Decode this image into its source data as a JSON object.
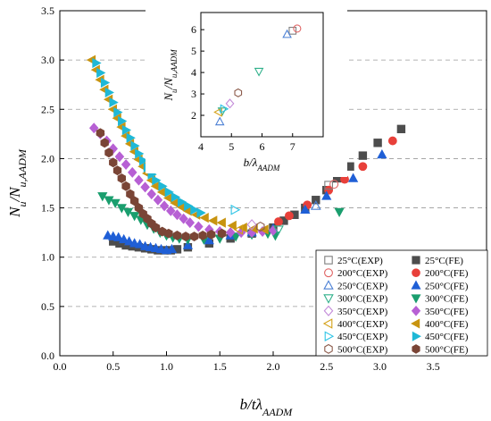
{
  "chart_data": [
    {
      "type": "scatter",
      "title": "",
      "xlabel": "b/tλ_AADM",
      "ylabel": "N_u/N_u,AADM",
      "xlim": [
        0,
        4.0
      ],
      "ylim": [
        0,
        3.5
      ],
      "xticks": [
        "0.0",
        "0.5",
        "1.0",
        "1.5",
        "2.0",
        "2.5",
        "3.0",
        "3.5"
      ],
      "yticks": [
        "0.0",
        "0.5",
        "1.0",
        "1.5",
        "2.0",
        "2.5",
        "3.0",
        "3.5"
      ],
      "grid": "horizontal dashed",
      "legend_position": "bottom-right",
      "legend_columns": 2,
      "series": [
        {
          "name": "25°C(EXP)",
          "marker": "square",
          "filled": false,
          "color": "#7f7f7f",
          "points": [
            [
              2.52,
              1.73
            ]
          ]
        },
        {
          "name": "200°C(EXP)",
          "marker": "circle",
          "filled": false,
          "color": "#e06666",
          "points": [
            [
              2.57,
              1.74
            ]
          ]
        },
        {
          "name": "250°C(EXP)",
          "marker": "triangle-up",
          "filled": false,
          "color": "#4a7fd4",
          "points": [
            [
              2.4,
              1.52
            ]
          ]
        },
        {
          "name": "300°C(EXP)",
          "marker": "triangle-down",
          "filled": false,
          "color": "#2fb08a",
          "points": [
            [
              2.05,
              1.28
            ]
          ]
        },
        {
          "name": "350°C(EXP)",
          "marker": "diamond",
          "filled": false,
          "color": "#c38bd9",
          "points": [
            [
              1.8,
              1.33
            ]
          ]
        },
        {
          "name": "400°C(EXP)",
          "marker": "triangle-left",
          "filled": false,
          "color": "#d4a017",
          "points": [
            [
              1.68,
              1.28
            ]
          ]
        },
        {
          "name": "450°C(EXP)",
          "marker": "triangle-right",
          "filled": false,
          "color": "#2ec4e6",
          "points": [
            [
              1.64,
              1.48
            ]
          ]
        },
        {
          "name": "500°C(EXP)",
          "marker": "hexagon",
          "filled": false,
          "color": "#8b5a4a",
          "points": [
            [
              1.88,
              1.31
            ]
          ]
        },
        {
          "name": "25°C(FE)",
          "marker": "square",
          "filled": true,
          "color": "#4d4d4d",
          "points": [
            [
              0.5,
              1.16
            ],
            [
              0.56,
              1.14
            ],
            [
              0.62,
              1.12
            ],
            [
              0.68,
              1.11
            ],
            [
              0.74,
              1.1
            ],
            [
              0.8,
              1.09
            ],
            [
              0.86,
              1.08
            ],
            [
              0.92,
              1.07
            ],
            [
              0.98,
              1.07
            ],
            [
              1.04,
              1.07
            ],
            [
              1.1,
              1.08
            ],
            [
              1.2,
              1.1
            ],
            [
              1.4,
              1.14
            ],
            [
              1.6,
              1.19
            ],
            [
              1.8,
              1.24
            ],
            [
              2.0,
              1.3
            ],
            [
              2.1,
              1.37
            ],
            [
              2.2,
              1.43
            ],
            [
              2.3,
              1.5
            ],
            [
              2.4,
              1.58
            ],
            [
              2.5,
              1.68
            ],
            [
              2.6,
              1.8
            ],
            [
              2.72,
              1.92
            ],
            [
              2.84,
              2.03
            ],
            [
              2.98,
              2.16
            ],
            [
              3.2,
              2.3
            ]
          ]
        },
        {
          "name": "200°C(FE)",
          "marker": "circle",
          "filled": true,
          "color": "#e8403a",
          "points": [
            [
              2.05,
              1.36
            ],
            [
              2.15,
              1.42
            ],
            [
              2.32,
              1.53
            ],
            [
              2.52,
              1.68
            ],
            [
              2.67,
              1.79
            ],
            [
              2.84,
              1.92
            ],
            [
              3.12,
              2.18
            ]
          ]
        },
        {
          "name": "250°C(FE)",
          "marker": "triangle-up",
          "filled": true,
          "color": "#1f5fd6",
          "points": [
            [
              0.45,
              1.22
            ],
            [
              0.5,
              1.21
            ],
            [
              0.55,
              1.2
            ],
            [
              0.6,
              1.18
            ],
            [
              0.65,
              1.16
            ],
            [
              0.7,
              1.14
            ],
            [
              0.75,
              1.13
            ],
            [
              0.8,
              1.11
            ],
            [
              0.85,
              1.1
            ],
            [
              0.9,
              1.09
            ],
            [
              0.95,
              1.08
            ],
            [
              1.0,
              1.07
            ],
            [
              1.05,
              1.08
            ],
            [
              1.2,
              1.12
            ],
            [
              1.4,
              1.17
            ],
            [
              1.6,
              1.22
            ],
            [
              1.8,
              1.25
            ],
            [
              2.0,
              1.29
            ],
            [
              2.3,
              1.48
            ],
            [
              2.5,
              1.62
            ],
            [
              2.75,
              1.8
            ],
            [
              3.02,
              2.04
            ]
          ]
        },
        {
          "name": "300°C(FE)",
          "marker": "triangle-down",
          "filled": true,
          "color": "#1a9e6e",
          "points": [
            [
              0.4,
              1.62
            ],
            [
              0.46,
              1.58
            ],
            [
              0.52,
              1.55
            ],
            [
              0.58,
              1.5
            ],
            [
              0.64,
              1.46
            ],
            [
              0.7,
              1.42
            ],
            [
              0.76,
              1.38
            ],
            [
              0.82,
              1.33
            ],
            [
              0.88,
              1.29
            ],
            [
              0.94,
              1.25
            ],
            [
              1.0,
              1.22
            ],
            [
              1.06,
              1.2
            ],
            [
              1.12,
              1.19
            ],
            [
              1.2,
              1.18
            ],
            [
              1.35,
              1.18
            ],
            [
              1.5,
              1.19
            ],
            [
              1.65,
              1.21
            ],
            [
              1.8,
              1.23
            ],
            [
              1.95,
              1.24
            ],
            [
              2.02,
              1.22
            ],
            [
              2.62,
              1.46
            ]
          ]
        },
        {
          "name": "350°C(FE)",
          "marker": "diamond",
          "filled": true,
          "color": "#b760d4",
          "points": [
            [
              0.32,
              2.31
            ],
            [
              0.38,
              2.25
            ],
            [
              0.44,
              2.18
            ],
            [
              0.5,
              2.1
            ],
            [
              0.56,
              2.02
            ],
            [
              0.62,
              1.94
            ],
            [
              0.68,
              1.86
            ],
            [
              0.74,
              1.78
            ],
            [
              0.8,
              1.71
            ],
            [
              0.86,
              1.64
            ],
            [
              0.92,
              1.58
            ],
            [
              0.98,
              1.52
            ],
            [
              1.04,
              1.47
            ],
            [
              1.1,
              1.43
            ],
            [
              1.16,
              1.39
            ],
            [
              1.22,
              1.35
            ],
            [
              1.3,
              1.31
            ],
            [
              1.4,
              1.28
            ],
            [
              1.5,
              1.26
            ],
            [
              1.6,
              1.25
            ],
            [
              1.7,
              1.25
            ],
            [
              1.8,
              1.25
            ],
            [
              1.9,
              1.26
            ],
            [
              2.0,
              1.27
            ]
          ]
        },
        {
          "name": "400°C(FE)",
          "marker": "triangle-left",
          "filled": true,
          "color": "#c89410",
          "points": [
            [
              0.3,
              3.0
            ],
            [
              0.34,
              2.9
            ],
            [
              0.38,
              2.8
            ],
            [
              0.42,
              2.7
            ],
            [
              0.46,
              2.6
            ],
            [
              0.5,
              2.5
            ],
            [
              0.54,
              2.41
            ],
            [
              0.58,
              2.32
            ],
            [
              0.62,
              2.23
            ],
            [
              0.66,
              2.15
            ],
            [
              0.7,
              2.07
            ],
            [
              0.74,
              1.99
            ],
            [
              0.78,
              1.92
            ],
            [
              0.82,
              1.85
            ],
            [
              0.86,
              1.78
            ],
            [
              0.9,
              1.72
            ],
            [
              0.96,
              1.66
            ],
            [
              1.02,
              1.6
            ],
            [
              1.08,
              1.55
            ],
            [
              1.14,
              1.51
            ],
            [
              1.2,
              1.47
            ],
            [
              1.28,
              1.43
            ],
            [
              1.36,
              1.4
            ],
            [
              1.44,
              1.37
            ],
            [
              1.52,
              1.35
            ],
            [
              1.62,
              1.32
            ],
            [
              1.72,
              1.3
            ],
            [
              1.82,
              1.29
            ],
            [
              1.92,
              1.28
            ]
          ]
        },
        {
          "name": "450°C(FE)",
          "marker": "triangle-right",
          "filled": true,
          "color": "#1fb8d6",
          "points": [
            [
              0.34,
              2.97
            ],
            [
              0.38,
              2.87
            ],
            [
              0.42,
              2.77
            ],
            [
              0.46,
              2.67
            ],
            [
              0.5,
              2.57
            ],
            [
              0.54,
              2.47
            ],
            [
              0.58,
              2.38
            ],
            [
              0.62,
              2.29
            ],
            [
              0.66,
              2.21
            ],
            [
              0.7,
              2.13
            ],
            [
              0.74,
              2.05
            ],
            [
              0.78,
              1.98
            ],
            [
              0.82,
              1.91
            ],
            [
              0.86,
              1.84
            ],
            [
              0.9,
              1.78
            ],
            [
              0.96,
              1.72
            ],
            [
              1.02,
              1.66
            ],
            [
              1.08,
              1.61
            ],
            [
              1.14,
              1.56
            ],
            [
              1.2,
              1.52
            ],
            [
              1.26,
              1.48
            ],
            [
              1.32,
              1.45
            ]
          ]
        },
        {
          "name": "500°C(FE)",
          "marker": "hexagon",
          "filled": true,
          "color": "#7a4536",
          "points": [
            [
              0.38,
              2.26
            ],
            [
              0.42,
              2.16
            ],
            [
              0.46,
              2.06
            ],
            [
              0.5,
              1.96
            ],
            [
              0.54,
              1.88
            ],
            [
              0.58,
              1.8
            ],
            [
              0.62,
              1.72
            ],
            [
              0.66,
              1.64
            ],
            [
              0.7,
              1.57
            ],
            [
              0.74,
              1.5
            ],
            [
              0.78,
              1.44
            ],
            [
              0.82,
              1.39
            ],
            [
              0.86,
              1.34
            ],
            [
              0.9,
              1.3
            ],
            [
              0.96,
              1.26
            ],
            [
              1.02,
              1.24
            ],
            [
              1.1,
              1.22
            ],
            [
              1.18,
              1.21
            ],
            [
              1.26,
              1.21
            ],
            [
              1.34,
              1.22
            ],
            [
              1.42,
              1.23
            ],
            [
              1.52,
              1.24
            ]
          ]
        }
      ]
    },
    {
      "type": "scatter",
      "title": "",
      "inset": true,
      "xlabel": "b/λ_AADM",
      "ylabel": "N_u/N_u,AADM",
      "xlim": [
        4,
        8
      ],
      "ylim": [
        1,
        6.8
      ],
      "xticks": [
        "4",
        "5",
        "6",
        "7"
      ],
      "yticks": [
        "2",
        "3",
        "4",
        "5",
        "6"
      ],
      "series": [
        {
          "name": "25°C(EXP)",
          "marker": "square",
          "color": "#7f7f7f",
          "points": [
            [
              7.0,
              5.95
            ]
          ]
        },
        {
          "name": "200°C(EXP)",
          "marker": "circle",
          "color": "#e06666",
          "points": [
            [
              7.15,
              6.05
            ]
          ]
        },
        {
          "name": "250°C(EXP)",
          "marker": "triangle-up",
          "color": "#4a7fd4",
          "points": [
            [
              6.82,
              5.78
            ],
            [
              4.62,
              1.7
            ]
          ]
        },
        {
          "name": "300°C(EXP)",
          "marker": "triangle-down",
          "color": "#2fb08a",
          "points": [
            [
              5.9,
              4.05
            ],
            [
              4.7,
              2.2
            ]
          ]
        },
        {
          "name": "350°C(EXP)",
          "marker": "diamond",
          "color": "#c38bd9",
          "points": [
            [
              4.95,
              2.55
            ]
          ]
        },
        {
          "name": "400°C(EXP)",
          "marker": "triangle-left",
          "color": "#d4a017",
          "points": [
            [
              4.58,
              2.15
            ]
          ]
        },
        {
          "name": "450°C(EXP)",
          "marker": "triangle-right",
          "color": "#2ec4e6",
          "points": [
            [
              4.75,
              2.3
            ]
          ]
        },
        {
          "name": "500°C(EXP)",
          "marker": "hexagon",
          "color": "#8b5a4a",
          "points": [
            [
              5.22,
              3.05
            ]
          ]
        }
      ]
    }
  ]
}
